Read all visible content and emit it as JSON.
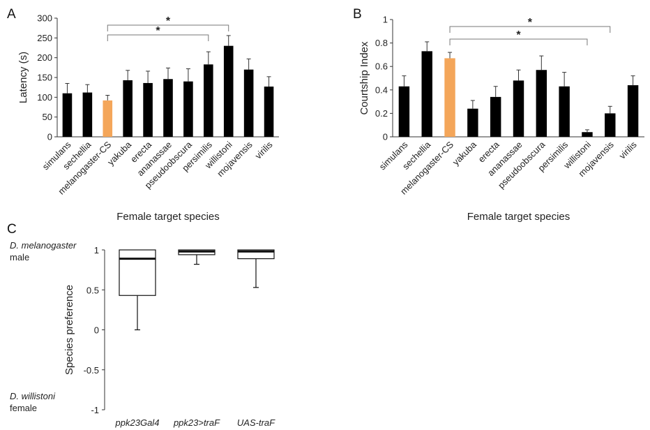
{
  "chart_data": [
    {
      "panel": "A",
      "type": "bar",
      "xlabel": "Female target species",
      "ylabel": "Latency (s)",
      "ylim": [
        0,
        300
      ],
      "yticks": [
        0,
        50,
        100,
        150,
        200,
        250,
        300
      ],
      "categories": [
        "simulans",
        "sechellia",
        "melanogaster-CS",
        "yakuba",
        "erecta",
        "ananassae",
        "pseudoobscura",
        "persimilis",
        "willistoni",
        "mojavensis",
        "virilis"
      ],
      "values": [
        110,
        112,
        92,
        143,
        136,
        146,
        140,
        183,
        230,
        170,
        127
      ],
      "errors": [
        25,
        20,
        13,
        25,
        30,
        28,
        32,
        32,
        26,
        27,
        25
      ],
      "highlight_index": 2,
      "bar_color": "#000000",
      "highlight_color": "#f4a65a",
      "significance": [
        {
          "from": "melanogaster-CS",
          "to": "willistoni",
          "label": "*"
        },
        {
          "from": "melanogaster-CS",
          "to": "persimilis",
          "label": "*"
        }
      ]
    },
    {
      "panel": "B",
      "type": "bar",
      "xlabel": "Female target species",
      "ylabel": "Courtship Index",
      "ylim": [
        0,
        1
      ],
      "yticks": [
        0,
        0.2,
        0.4,
        0.6,
        0.8,
        1
      ],
      "categories": [
        "simulans",
        "sechellia",
        "melanogaster-CS",
        "yakuba",
        "erecta",
        "ananassae",
        "pseudoobscura",
        "persimilis",
        "willistoni",
        "mojavensis",
        "virilis"
      ],
      "values": [
        0.43,
        0.73,
        0.67,
        0.24,
        0.34,
        0.48,
        0.57,
        0.43,
        0.04,
        0.2,
        0.44
      ],
      "errors": [
        0.09,
        0.08,
        0.05,
        0.07,
        0.09,
        0.09,
        0.12,
        0.12,
        0.02,
        0.06,
        0.08
      ],
      "highlight_index": 2,
      "bar_color": "#000000",
      "highlight_color": "#f4a65a",
      "significance": [
        {
          "from": "melanogaster-CS",
          "to": "mojavensis",
          "label": "*"
        },
        {
          "from": "melanogaster-CS",
          "to": "willistoni",
          "label": "*"
        }
      ]
    },
    {
      "panel": "C",
      "type": "box",
      "ylabel": "Species preference",
      "ylim": [
        -1,
        1
      ],
      "yticks": [
        -1,
        -0.5,
        0,
        0.5,
        1
      ],
      "top_label": {
        "line1": "D. melanogaster",
        "line2": "male"
      },
      "bottom_label": {
        "line1": "D. willistoni",
        "line2": "female"
      },
      "categories": [
        "ppk23Gal4",
        "ppk23>traF",
        "UAS-traF"
      ],
      "boxes": [
        {
          "min": 0,
          "q1": 0.43,
          "median": 0.89,
          "q3": 1.0,
          "max": 1.0
        },
        {
          "min": 0.82,
          "q1": 0.94,
          "median": 0.98,
          "q3": 1.0,
          "max": 1.0
        },
        {
          "min": 0.53,
          "q1": 0.89,
          "median": 0.98,
          "q3": 1.0,
          "max": 1.0
        }
      ]
    }
  ]
}
